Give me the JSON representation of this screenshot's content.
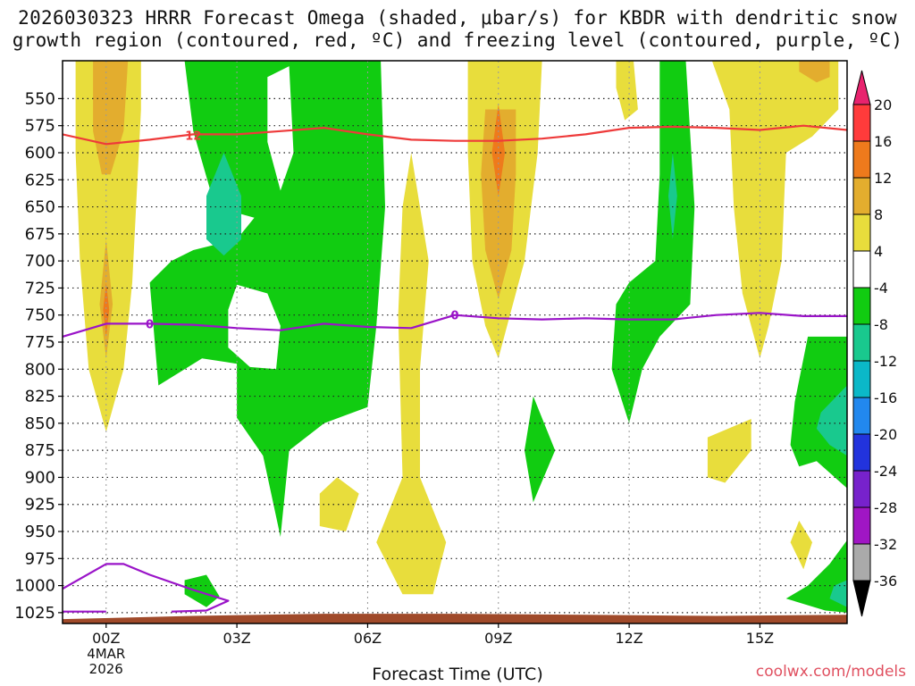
{
  "chart_data": {
    "type": "heatmap",
    "title_line1": "2026030323 HRRR Forecast Omega (shaded, μbar/s) for KBDR with dendritic snow",
    "title_line2": "growth region (contoured, red, ºC) and freezing level (contoured, purple, ºC)",
    "xlabel": "Forecast Time (UTC)",
    "credit": "coolwx.com/models",
    "x_ticks": [
      "00Z",
      "03Z",
      "06Z",
      "09Z",
      "12Z",
      "15Z"
    ],
    "x_tick_hours": [
      0,
      3,
      6,
      9,
      12,
      15
    ],
    "x_range_hours": [
      -1,
      17
    ],
    "date_line1": "4MAR",
    "date_line2": "2026",
    "y_ticks": [
      "550",
      "575",
      "600",
      "625",
      "650",
      "675",
      "700",
      "725",
      "750",
      "775",
      "800",
      "825",
      "850",
      "875",
      "900",
      "925",
      "950",
      "975",
      "1000",
      "1025"
    ],
    "y_tick_values": [
      550,
      575,
      600,
      625,
      650,
      675,
      700,
      725,
      750,
      775,
      800,
      825,
      850,
      875,
      900,
      925,
      950,
      975,
      1000,
      1025
    ],
    "y_range_hPa": [
      515,
      1035
    ],
    "colorbar_labels": [
      "20",
      "16",
      "12",
      "8",
      "4",
      "-4",
      "-8",
      "-12",
      "-16",
      "-20",
      "-24",
      "-28",
      "-32",
      "-36"
    ],
    "colorbar_colors": [
      "#e8236e",
      "#ff3b3b",
      "#ee7a1c",
      "#e3ad2e",
      "#e8dd3c",
      "#ffffff",
      "#11cc11",
      "#19c98e",
      "#0bb8c8",
      "#2288ee",
      "#2233dd",
      "#7722cc",
      "#a016c4",
      "#aaaaaa",
      "#000000"
    ],
    "contour_labels": {
      "dgz": "12",
      "freezing": "0"
    },
    "dgz_line_color": "#ee3a3a",
    "freezing_line_color": "#9a14c8",
    "ground_color": "#a04a2a",
    "dgz_contour": [
      [
        -1,
        583
      ],
      [
        0,
        592
      ],
      [
        1,
        588
      ],
      [
        2,
        583
      ],
      [
        3,
        583
      ],
      [
        4,
        580
      ],
      [
        5,
        577
      ],
      [
        6,
        583
      ],
      [
        7,
        588
      ],
      [
        8,
        589
      ],
      [
        9,
        589
      ],
      [
        10,
        587
      ],
      [
        11,
        583
      ],
      [
        12,
        577
      ],
      [
        13,
        576
      ],
      [
        14,
        577
      ],
      [
        15,
        579
      ],
      [
        16,
        575
      ],
      [
        17,
        579
      ]
    ],
    "freezing_contour": [
      [
        -1,
        770
      ],
      [
        0,
        758
      ],
      [
        1,
        758
      ],
      [
        2,
        759
      ],
      [
        3,
        762
      ],
      [
        4,
        764
      ],
      [
        5,
        758
      ],
      [
        6,
        761
      ],
      [
        7,
        762
      ],
      [
        8,
        750
      ],
      [
        9,
        753
      ],
      [
        10,
        754
      ],
      [
        11,
        753
      ],
      [
        12,
        754
      ],
      [
        13,
        754
      ],
      [
        14,
        750
      ],
      [
        15,
        748
      ],
      [
        16,
        751
      ],
      [
        17,
        751
      ]
    ],
    "freezing_contour_low": [
      [
        -1,
        1003
      ],
      [
        0,
        980
      ],
      [
        0.4,
        980
      ],
      [
        1,
        990
      ],
      [
        2,
        1004
      ],
      [
        2.8,
        1014
      ],
      [
        2.3,
        1023
      ],
      [
        1.5,
        1024
      ]
    ],
    "freezing_contour_bottom": [
      [
        -1,
        1024
      ],
      [
        0,
        1024
      ]
    ],
    "ground_top": [
      [
        -1,
        1031
      ],
      [
        2,
        1028
      ],
      [
        5,
        1026
      ],
      [
        8,
        1026
      ],
      [
        11,
        1027
      ],
      [
        14,
        1028
      ],
      [
        17,
        1027
      ]
    ],
    "omega_regions": [
      {
        "level": "4",
        "poly": [
          [
            -0.7,
            515
          ],
          [
            0.8,
            515
          ],
          [
            0.8,
            560
          ],
          [
            0.7,
            640
          ],
          [
            0.6,
            720
          ],
          [
            0.4,
            800
          ],
          [
            0,
            858
          ],
          [
            -0.4,
            800
          ],
          [
            -0.6,
            700
          ],
          [
            -0.7,
            600
          ]
        ]
      },
      {
        "level": "8",
        "poly": [
          [
            -0.3,
            515
          ],
          [
            0.5,
            515
          ],
          [
            0.4,
            580
          ],
          [
            0.1,
            620
          ],
          [
            -0.1,
            620
          ],
          [
            -0.3,
            580
          ]
        ]
      },
      {
        "level": "8",
        "poly": [
          [
            0,
            680
          ],
          [
            0.15,
            740
          ],
          [
            0,
            790
          ],
          [
            -0.15,
            740
          ]
        ]
      },
      {
        "level": "12",
        "poly": [
          [
            0,
            720
          ],
          [
            0.07,
            745
          ],
          [
            0,
            770
          ],
          [
            -0.07,
            745
          ]
        ]
      },
      {
        "level": "-4",
        "poly": [
          [
            1.8,
            515
          ],
          [
            6.3,
            515
          ],
          [
            6.4,
            650
          ],
          [
            6.2,
            760
          ],
          [
            6.0,
            835
          ],
          [
            5,
            850
          ],
          [
            4.2,
            875
          ],
          [
            4,
            955
          ],
          [
            3.6,
            880
          ],
          [
            3,
            845
          ],
          [
            3,
            795
          ],
          [
            2.2,
            790
          ],
          [
            1.2,
            815
          ],
          [
            1,
            720
          ],
          [
            1.5,
            700
          ],
          [
            2,
            690
          ],
          [
            3,
            680
          ],
          [
            3.4,
            660
          ],
          [
            2.5,
            650
          ],
          [
            2.0,
            580
          ]
        ]
      },
      {
        "level": "0",
        "poly": [
          [
            3.7,
            530
          ],
          [
            4.2,
            520
          ],
          [
            4.3,
            600
          ],
          [
            4.0,
            635
          ],
          [
            3.7,
            590
          ]
        ]
      },
      {
        "level": "0",
        "poly": [
          [
            3.0,
            722
          ],
          [
            3.7,
            730
          ],
          [
            4.0,
            760
          ],
          [
            3.9,
            800
          ],
          [
            3.3,
            798
          ],
          [
            2.8,
            780
          ],
          [
            2.8,
            745
          ]
        ]
      },
      {
        "level": "-8",
        "poly": [
          [
            2.7,
            600
          ],
          [
            3.1,
            640
          ],
          [
            3.1,
            680
          ],
          [
            2.7,
            695
          ],
          [
            2.3,
            680
          ],
          [
            2.3,
            640
          ]
        ]
      },
      {
        "level": "4",
        "poly": [
          [
            7.0,
            600
          ],
          [
            7.4,
            700
          ],
          [
            7.2,
            800
          ],
          [
            7.2,
            900
          ],
          [
            7.8,
            960
          ],
          [
            7.5,
            1008
          ],
          [
            6.8,
            1008
          ],
          [
            6.2,
            960
          ],
          [
            6.8,
            900
          ],
          [
            6.7,
            750
          ],
          [
            6.8,
            650
          ]
        ]
      },
      {
        "level": "4",
        "poly": [
          [
            5.3,
            900
          ],
          [
            5.8,
            915
          ],
          [
            5.5,
            950
          ],
          [
            4.9,
            945
          ],
          [
            4.9,
            915
          ]
        ]
      },
      {
        "level": "4",
        "poly": [
          [
            8.3,
            515
          ],
          [
            10.0,
            515
          ],
          [
            9.9,
            600
          ],
          [
            9.6,
            700
          ],
          [
            9.2,
            760
          ],
          [
            9,
            790
          ],
          [
            8.7,
            760
          ],
          [
            8.4,
            700
          ],
          [
            8.3,
            600
          ]
        ]
      },
      {
        "level": "8",
        "poly": [
          [
            8.7,
            560
          ],
          [
            9.4,
            560
          ],
          [
            9.4,
            620
          ],
          [
            9.3,
            690
          ],
          [
            9.0,
            735
          ],
          [
            8.7,
            690
          ],
          [
            8.6,
            620
          ]
        ]
      },
      {
        "level": "12",
        "poly": [
          [
            9.0,
            555
          ],
          [
            9.15,
            600
          ],
          [
            9.0,
            640
          ],
          [
            8.85,
            600
          ]
        ]
      },
      {
        "level": "-4",
        "poly": [
          [
            9.8,
            825
          ],
          [
            10.3,
            875
          ],
          [
            9.8,
            923
          ],
          [
            9.6,
            875
          ]
        ]
      },
      {
        "level": "-4",
        "poly": [
          [
            12.7,
            515
          ],
          [
            13.3,
            515
          ],
          [
            13.5,
            650
          ],
          [
            13.4,
            740
          ],
          [
            12.7,
            770
          ],
          [
            12.3,
            800
          ],
          [
            12.0,
            850
          ],
          [
            11.6,
            800
          ],
          [
            11.7,
            740
          ],
          [
            12.0,
            720
          ],
          [
            12.6,
            700
          ],
          [
            12.7,
            620
          ]
        ]
      },
      {
        "level": "-8",
        "poly": [
          [
            13.0,
            600
          ],
          [
            13.1,
            640
          ],
          [
            13.0,
            680
          ],
          [
            12.9,
            640
          ]
        ]
      },
      {
        "level": "4",
        "poly": [
          [
            11.7,
            515
          ],
          [
            12.1,
            515
          ],
          [
            12.2,
            560
          ],
          [
            11.9,
            570
          ],
          [
            11.7,
            540
          ]
        ]
      },
      {
        "level": "4",
        "poly": [
          [
            13.9,
            515
          ],
          [
            16.8,
            515
          ],
          [
            16.8,
            560
          ],
          [
            16.2,
            585
          ],
          [
            15.6,
            600
          ],
          [
            15.5,
            700
          ],
          [
            15.2,
            760
          ],
          [
            15,
            790
          ],
          [
            14.6,
            730
          ],
          [
            14.4,
            650
          ],
          [
            14.3,
            560
          ]
        ]
      },
      {
        "level": "8",
        "poly": [
          [
            15.9,
            515
          ],
          [
            16.6,
            515
          ],
          [
            16.6,
            530
          ],
          [
            16.3,
            535
          ],
          [
            15.9,
            525
          ]
        ]
      },
      {
        "level": "4",
        "poly": [
          [
            13.8,
            863
          ],
          [
            14.8,
            846
          ],
          [
            14.8,
            875
          ],
          [
            14.2,
            905
          ],
          [
            13.8,
            900
          ]
        ]
      },
      {
        "level": "4",
        "poly": [
          [
            15.9,
            940
          ],
          [
            16.2,
            960
          ],
          [
            16.0,
            985
          ],
          [
            15.7,
            960
          ]
        ]
      },
      {
        "level": "-4",
        "poly": [
          [
            16.1,
            770
          ],
          [
            17,
            770
          ],
          [
            17,
            910
          ],
          [
            16.3,
            885
          ],
          [
            15.9,
            890
          ],
          [
            15.7,
            870
          ],
          [
            15.8,
            830
          ]
        ]
      },
      {
        "level": "-8",
        "poly": [
          [
            16.4,
            840
          ],
          [
            17,
            815
          ],
          [
            17,
            880
          ],
          [
            16.6,
            870
          ],
          [
            16.3,
            855
          ]
        ]
      },
      {
        "level": "-4",
        "poly": [
          [
            17,
            958
          ],
          [
            17,
            1025
          ],
          [
            16.5,
            1023
          ],
          [
            15.6,
            1012
          ],
          [
            16.1,
            1000
          ],
          [
            16.6,
            980
          ]
        ]
      },
      {
        "level": "-8",
        "poly": [
          [
            17,
            995
          ],
          [
            17,
            1020
          ],
          [
            16.6,
            1012
          ],
          [
            16.7,
            1000
          ]
        ]
      },
      {
        "level": "-4",
        "poly": [
          [
            1.8,
            995
          ],
          [
            2.3,
            990
          ],
          [
            2.6,
            1010
          ],
          [
            2.3,
            1020
          ],
          [
            1.8,
            1008
          ]
        ]
      }
    ]
  }
}
